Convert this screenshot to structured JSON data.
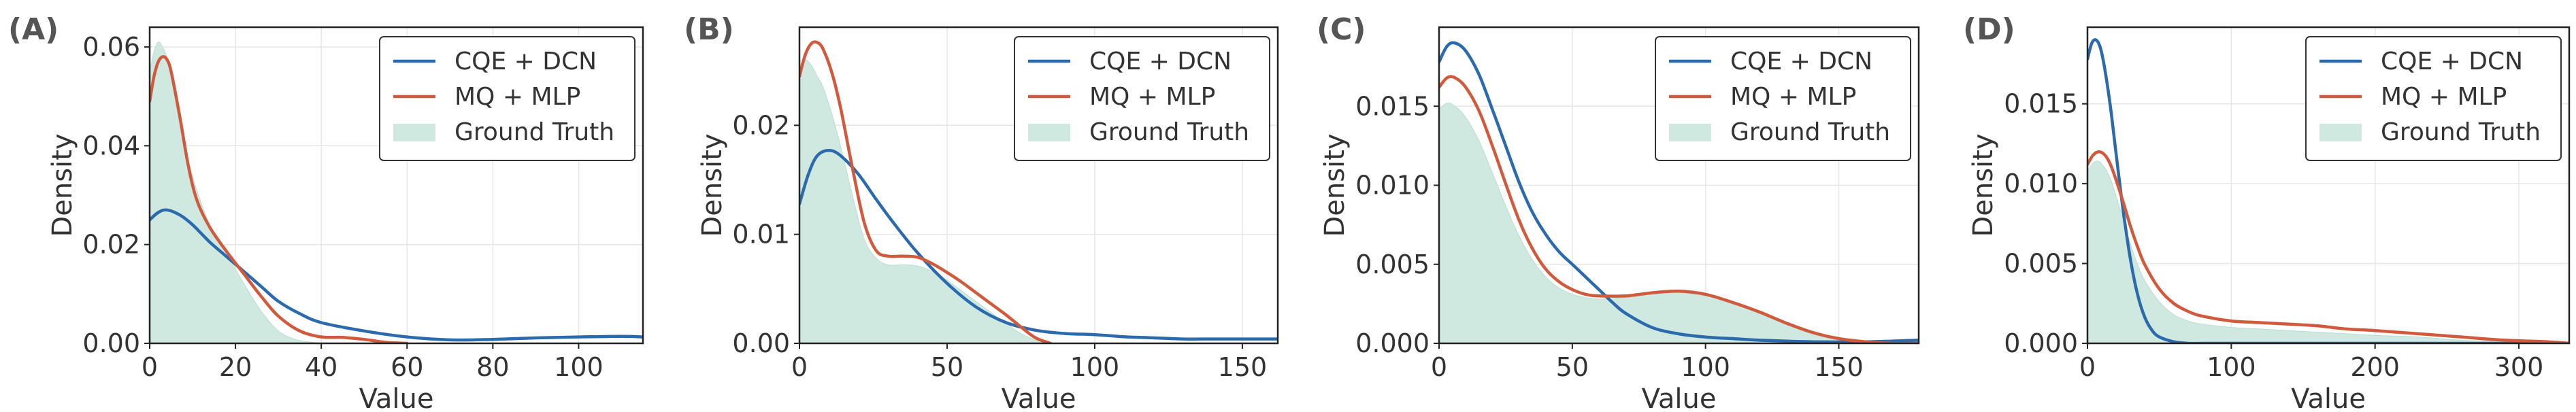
{
  "colors": {
    "cqe_dcn": "#2a6aad",
    "mq_mlp": "#d25a3c",
    "ground_truth_fill": "#cfe9e1",
    "ground_truth_edge": "#b9ded3",
    "grid": "#e6e6e6",
    "axes": "#222222"
  },
  "chart_data": [
    {
      "type": "line",
      "panel_label": "(A)",
      "xlabel": "Value",
      "ylabel": "Density",
      "xlim": [
        0,
        115
      ],
      "ylim": [
        0,
        0.064
      ],
      "xticks": [
        0,
        20,
        40,
        60,
        80,
        100
      ],
      "xtick_labels": [
        "0",
        "20",
        "40",
        "60",
        "80",
        "100"
      ],
      "yticks": [
        0,
        0.02,
        0.04,
        0.06
      ],
      "ytick_labels": [
        "0.00",
        "0.02",
        "0.04",
        "0.06"
      ],
      "grid": true,
      "legend": {
        "position": "top-right",
        "entries": [
          "CQE + DCN",
          "MQ + MLP",
          "Ground Truth"
        ]
      },
      "series": [
        {
          "name": "CQE + DCN",
          "style": "line",
          "color": "cqe_dcn",
          "x": [
            0,
            2,
            4,
            7,
            10,
            14,
            18,
            22,
            26,
            30,
            35,
            40,
            50,
            60,
            70,
            80,
            90,
            100,
            110,
            115
          ],
          "y": [
            0.025,
            0.0265,
            0.027,
            0.026,
            0.024,
            0.0205,
            0.0175,
            0.0145,
            0.0115,
            0.0085,
            0.006,
            0.0042,
            0.0025,
            0.0013,
            0.0007,
            0.0008,
            0.0011,
            0.0013,
            0.0014,
            0.0013
          ]
        },
        {
          "name": "MQ + MLP",
          "style": "line",
          "color": "mq_mlp",
          "x": [
            0,
            1,
            2,
            3,
            4,
            5,
            7,
            9,
            11,
            14,
            18,
            22,
            26,
            30,
            35,
            40,
            45,
            50,
            55,
            60
          ],
          "y": [
            0.049,
            0.054,
            0.057,
            0.058,
            0.0575,
            0.055,
            0.046,
            0.036,
            0.029,
            0.0235,
            0.0185,
            0.014,
            0.0095,
            0.0055,
            0.0025,
            0.0013,
            0.0012,
            0.0008,
            0.0002,
            0.0
          ]
        },
        {
          "name": "Ground Truth",
          "style": "area",
          "color": "ground_truth_fill",
          "x": [
            0,
            1,
            2,
            3,
            4,
            5,
            7,
            9,
            11,
            14,
            18,
            22,
            26,
            30,
            34,
            38,
            42
          ],
          "y": [
            0.055,
            0.059,
            0.061,
            0.06,
            0.058,
            0.054,
            0.045,
            0.037,
            0.031,
            0.024,
            0.018,
            0.012,
            0.0065,
            0.0025,
            0.0008,
            0.0002,
            0.0
          ]
        }
      ]
    },
    {
      "type": "line",
      "panel_label": "(B)",
      "xlabel": "Value",
      "ylabel": "Density",
      "xlim": [
        0,
        162
      ],
      "ylim": [
        0,
        0.029
      ],
      "xticks": [
        0,
        50,
        100,
        150
      ],
      "xtick_labels": [
        "0",
        "50",
        "100",
        "150"
      ],
      "yticks": [
        0,
        0.01,
        0.02
      ],
      "ytick_labels": [
        "0.00",
        "0.01",
        "0.02"
      ],
      "grid": true,
      "legend": {
        "position": "top-right",
        "entries": [
          "CQE + DCN",
          "MQ + MLP",
          "Ground Truth"
        ]
      },
      "series": [
        {
          "name": "CQE + DCN",
          "style": "line",
          "color": "cqe_dcn",
          "x": [
            0,
            3,
            6,
            10,
            14,
            20,
            26,
            32,
            40,
            50,
            60,
            70,
            80,
            90,
            100,
            110,
            120,
            130,
            140,
            150,
            162
          ],
          "y": [
            0.0128,
            0.0155,
            0.0172,
            0.0177,
            0.0172,
            0.0155,
            0.0132,
            0.011,
            0.0083,
            0.0055,
            0.0033,
            0.0019,
            0.0012,
            0.0009,
            0.0008,
            0.0006,
            0.0005,
            0.0004,
            0.0004,
            0.0004,
            0.0004
          ]
        },
        {
          "name": "MQ + MLP",
          "style": "line",
          "color": "mq_mlp",
          "x": [
            0,
            2,
            4,
            6,
            8,
            11,
            14,
            18,
            22,
            26,
            30,
            35,
            40,
            45,
            50,
            55,
            60,
            65,
            70,
            75,
            80,
            85
          ],
          "y": [
            0.0245,
            0.0265,
            0.0275,
            0.0276,
            0.027,
            0.0248,
            0.0215,
            0.016,
            0.011,
            0.0085,
            0.008,
            0.008,
            0.0079,
            0.0073,
            0.0065,
            0.0056,
            0.0046,
            0.0036,
            0.0026,
            0.0015,
            0.0005,
            0.0
          ]
        },
        {
          "name": "Ground Truth",
          "style": "area",
          "color": "ground_truth_fill",
          "x": [
            0,
            2,
            4,
            6,
            8,
            11,
            14,
            18,
            22,
            26,
            30,
            35,
            40,
            45,
            50,
            55,
            60,
            65,
            70,
            75,
            80,
            85
          ],
          "y": [
            0.0255,
            0.026,
            0.0255,
            0.0245,
            0.0235,
            0.021,
            0.018,
            0.0135,
            0.0095,
            0.0078,
            0.0072,
            0.0072,
            0.0071,
            0.0066,
            0.0058,
            0.0048,
            0.0038,
            0.0028,
            0.0018,
            0.0009,
            0.0003,
            0.0
          ]
        }
      ]
    },
    {
      "type": "line",
      "panel_label": "(C)",
      "xlabel": "Value",
      "ylabel": "Density",
      "xlim": [
        0,
        180
      ],
      "ylim": [
        0,
        0.02
      ],
      "xticks": [
        0,
        50,
        100,
        150
      ],
      "xtick_labels": [
        "0",
        "50",
        "100",
        "150"
      ],
      "yticks": [
        0,
        0.005,
        0.01,
        0.015
      ],
      "ytick_labels": [
        "0.000",
        "0.005",
        "0.010",
        "0.015"
      ],
      "grid": true,
      "legend": {
        "position": "top-right",
        "entries": [
          "CQE + DCN",
          "MQ + MLP",
          "Ground Truth"
        ]
      },
      "series": [
        {
          "name": "CQE + DCN",
          "style": "line",
          "color": "cqe_dcn",
          "x": [
            0,
            3,
            6,
            10,
            15,
            20,
            25,
            30,
            35,
            40,
            45,
            50,
            55,
            60,
            65,
            70,
            80,
            90,
            100,
            110,
            120,
            140,
            160,
            180
          ],
          "y": [
            0.0178,
            0.0188,
            0.019,
            0.0185,
            0.017,
            0.0148,
            0.0125,
            0.0102,
            0.0083,
            0.0069,
            0.0058,
            0.005,
            0.0042,
            0.0034,
            0.0026,
            0.0019,
            0.001,
            0.0006,
            0.0004,
            0.0003,
            0.0002,
            0.0001,
            0.0001,
            0.0002
          ]
        },
        {
          "name": "MQ + MLP",
          "style": "line",
          "color": "mq_mlp",
          "x": [
            0,
            3,
            6,
            10,
            15,
            20,
            25,
            30,
            35,
            40,
            45,
            50,
            55,
            60,
            70,
            80,
            90,
            100,
            110,
            120,
            130,
            140,
            150,
            160,
            170,
            180
          ],
          "y": [
            0.0162,
            0.0168,
            0.0168,
            0.0162,
            0.0147,
            0.0125,
            0.0101,
            0.0078,
            0.006,
            0.0047,
            0.0039,
            0.0034,
            0.0031,
            0.003,
            0.003,
            0.0032,
            0.0033,
            0.0031,
            0.0026,
            0.002,
            0.0013,
            0.0007,
            0.0003,
            0.0001,
            0.0,
            0.0
          ]
        },
        {
          "name": "Ground Truth",
          "style": "area",
          "color": "ground_truth_fill",
          "x": [
            0,
            3,
            6,
            10,
            15,
            20,
            25,
            30,
            35,
            40,
            45,
            50,
            55,
            60,
            70,
            80,
            90,
            100,
            110,
            120,
            130,
            140,
            150,
            160
          ],
          "y": [
            0.0148,
            0.0152,
            0.015,
            0.0143,
            0.0128,
            0.0108,
            0.0087,
            0.0068,
            0.0053,
            0.0042,
            0.0035,
            0.0031,
            0.0029,
            0.0028,
            0.0029,
            0.0031,
            0.0032,
            0.003,
            0.0025,
            0.0019,
            0.0012,
            0.0006,
            0.0002,
            0.0
          ]
        }
      ]
    },
    {
      "type": "line",
      "panel_label": "(D)",
      "xlabel": "Value",
      "ylabel": "Density",
      "xlim": [
        0,
        335
      ],
      "ylim": [
        0,
        0.0198
      ],
      "xticks": [
        0,
        100,
        200,
        300
      ],
      "xtick_labels": [
        "0",
        "100",
        "200",
        "300"
      ],
      "yticks": [
        0,
        0.005,
        0.01,
        0.015
      ],
      "ytick_labels": [
        "0.000",
        "0.005",
        "0.010",
        "0.015"
      ],
      "grid": true,
      "legend": {
        "position": "top-right",
        "entries": [
          "CQE + DCN",
          "MQ + MLP",
          "Ground Truth"
        ]
      },
      "series": [
        {
          "name": "CQE + DCN",
          "style": "line",
          "color": "cqe_dcn",
          "x": [
            0,
            3,
            6,
            9,
            12,
            16,
            20,
            25,
            30,
            35,
            40,
            45,
            50,
            60,
            70,
            80,
            100,
            150,
            200,
            250,
            300,
            335
          ],
          "y": [
            0.0178,
            0.0188,
            0.019,
            0.0185,
            0.0172,
            0.0148,
            0.0118,
            0.0082,
            0.0052,
            0.003,
            0.0016,
            0.0008,
            0.0004,
            0.0001,
            0.0,
            0.0,
            0.0,
            0.0,
            0.0,
            0.0,
            0.0,
            0.0
          ]
        },
        {
          "name": "MQ + MLP",
          "style": "line",
          "color": "mq_mlp",
          "x": [
            0,
            4,
            8,
            12,
            16,
            20,
            25,
            30,
            35,
            40,
            50,
            60,
            70,
            80,
            100,
            120,
            140,
            160,
            180,
            200,
            230,
            260,
            290,
            320,
            335
          ],
          "y": [
            0.0112,
            0.0118,
            0.012,
            0.0118,
            0.0112,
            0.0102,
            0.0088,
            0.0073,
            0.006,
            0.0049,
            0.0034,
            0.0025,
            0.002,
            0.0017,
            0.0014,
            0.0013,
            0.0012,
            0.0011,
            0.0009,
            0.0008,
            0.0006,
            0.0004,
            0.0002,
            0.0001,
            0.0
          ]
        },
        {
          "name": "Ground Truth",
          "style": "area",
          "color": "ground_truth_fill",
          "x": [
            0,
            4,
            8,
            12,
            16,
            20,
            25,
            30,
            35,
            40,
            50,
            60,
            70,
            80,
            100,
            120,
            140,
            160,
            180,
            200,
            230,
            260,
            290,
            320
          ],
          "y": [
            0.0108,
            0.0113,
            0.0114,
            0.011,
            0.0103,
            0.0092,
            0.0077,
            0.0062,
            0.0049,
            0.0039,
            0.0026,
            0.0018,
            0.0014,
            0.0012,
            0.001,
            0.0009,
            0.0008,
            0.0007,
            0.0006,
            0.0005,
            0.0004,
            0.0002,
            0.0001,
            0.0
          ]
        }
      ]
    }
  ]
}
